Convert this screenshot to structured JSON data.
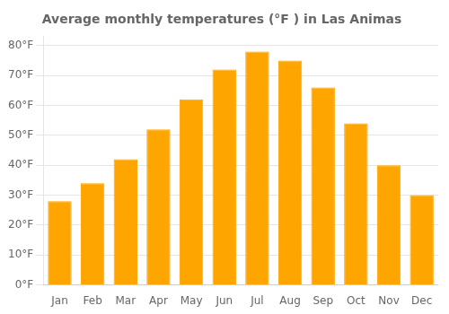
{
  "chart_data": {
    "type": "bar",
    "title": "Average monthly temperatures (°F ) in Las Animas",
    "categories": [
      "Jan",
      "Feb",
      "Mar",
      "Apr",
      "May",
      "Jun",
      "Jul",
      "Aug",
      "Sep",
      "Oct",
      "Nov",
      "Dec"
    ],
    "values": [
      28,
      34,
      42,
      52,
      62,
      72,
      78,
      75,
      66,
      54,
      40,
      30
    ],
    "color": "#FFA500",
    "ylim": [
      0,
      83
    ],
    "yticks": [
      {
        "value": 0,
        "label": "0°F"
      },
      {
        "value": 10,
        "label": "10°F"
      },
      {
        "value": 20,
        "label": "20°F"
      },
      {
        "value": 30,
        "label": "30°F"
      },
      {
        "value": 40,
        "label": "40°F"
      },
      {
        "value": 50,
        "label": "50°F"
      },
      {
        "value": 60,
        "label": "60°F"
      },
      {
        "value": 70,
        "label": "70°F"
      },
      {
        "value": 80,
        "label": "80°F"
      }
    ],
    "grid": true
  }
}
